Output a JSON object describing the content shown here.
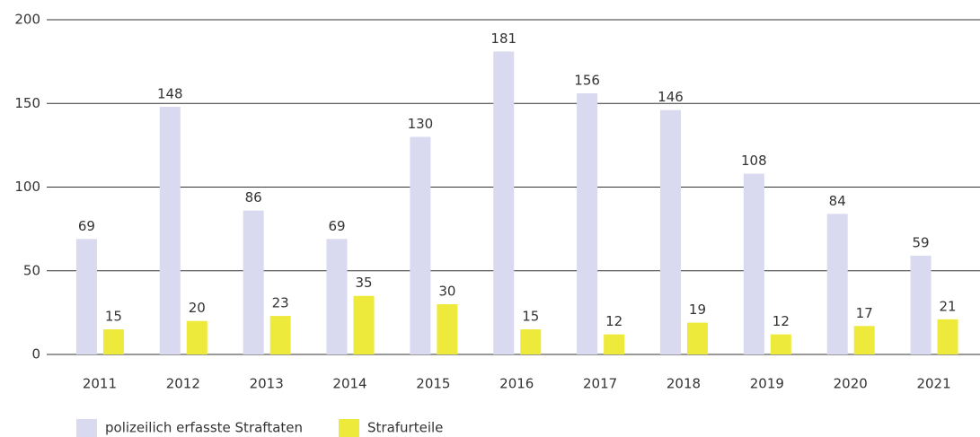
{
  "chart_data": {
    "type": "bar",
    "categories": [
      "2011",
      "2012",
      "2013",
      "2014",
      "2015",
      "2016",
      "2017",
      "2018",
      "2019",
      "2020",
      "2021"
    ],
    "series": [
      {
        "name": "polizeilich erfasste Straftaten",
        "color": "#d9d9ef",
        "values": [
          69,
          148,
          86,
          69,
          130,
          181,
          156,
          146,
          108,
          84,
          59
        ]
      },
      {
        "name": "Strafurteile",
        "color": "#eeea3c",
        "values": [
          15,
          20,
          23,
          35,
          30,
          15,
          12,
          19,
          12,
          17,
          21
        ]
      }
    ],
    "ylim": [
      0,
      200
    ],
    "yticks": [
      0,
      50,
      100,
      150,
      200
    ],
    "grid": true,
    "legend": "bottom"
  }
}
